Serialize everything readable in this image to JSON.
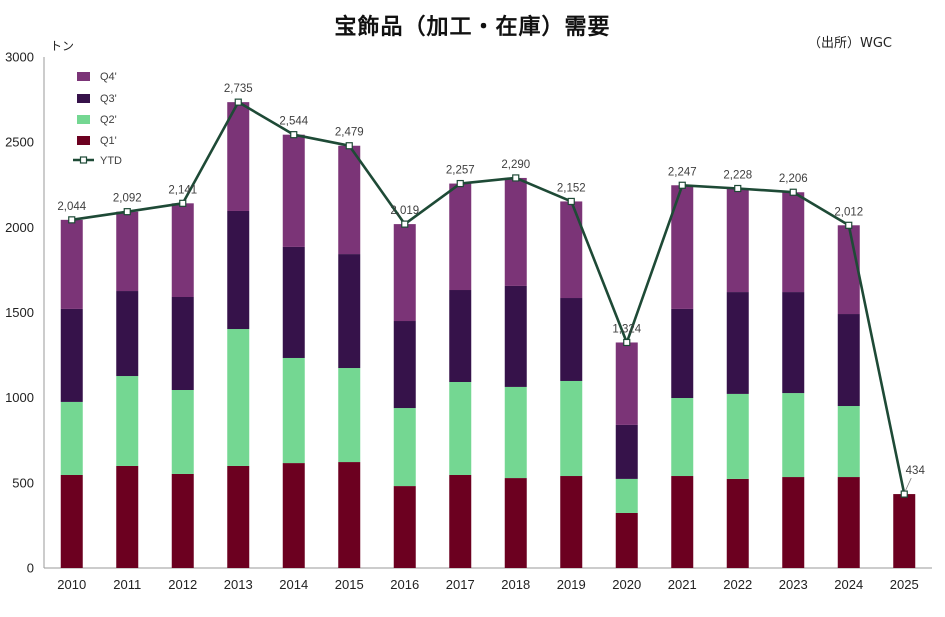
{
  "chart_data": {
    "type": "bar",
    "stacked": true,
    "title": "宝飾品（加工・在庫）需要",
    "source": "（出所）WGC",
    "ylabel": "トン",
    "xlabel": "",
    "ylim": [
      0,
      3000
    ],
    "yticks": [
      0,
      500,
      1000,
      1500,
      2000,
      2500,
      3000
    ],
    "grid": false,
    "legend_position": "top-left",
    "categories": [
      "2010",
      "2011",
      "2012",
      "2013",
      "2014",
      "2015",
      "2016",
      "2017",
      "2018",
      "2019",
      "2020",
      "2021",
      "2022",
      "2023",
      "2024",
      "2025"
    ],
    "series": [
      {
        "name": "Q1'",
        "color": "#6C0020",
        "values": [
          546,
          599,
          552,
          599,
          616,
          622,
          481,
          546,
          528,
          540,
          323,
          540,
          523,
          534,
          534,
          434
        ]
      },
      {
        "name": "Q2'",
        "color": "#74D792",
        "values": [
          429,
          528,
          493,
          804,
          617,
          552,
          458,
          546,
          535,
          558,
          200,
          458,
          499,
          493,
          417,
          null
        ]
      },
      {
        "name": "Q3'",
        "color": "#36124A",
        "values": [
          546,
          499,
          546,
          693,
          652,
          669,
          511,
          540,
          593,
          487,
          317,
          523,
          598,
          593,
          540,
          null
        ]
      },
      {
        "name": "Q4'",
        "color": "#7B3477",
        "values": [
          523,
          466,
          550,
          639,
          659,
          636,
          569,
          625,
          634,
          567,
          484,
          726,
          608,
          586,
          521,
          null
        ]
      }
    ],
    "line_series": {
      "name": "YTD",
      "color": "#1E4A36",
      "values": [
        2044,
        2092,
        2141,
        2735,
        2544,
        2479,
        2019,
        2257,
        2290,
        2152,
        1324,
        2247,
        2228,
        2206,
        2012,
        434
      ]
    },
    "data_labels": [
      "2,044",
      "2,092",
      "2,141",
      "2,735",
      "2,544",
      "2,479",
      "2,019",
      "2,257",
      "2,290",
      "2,152",
      "1,324",
      "2,247",
      "2,228",
      "2,206",
      "2,012",
      "434"
    ]
  }
}
